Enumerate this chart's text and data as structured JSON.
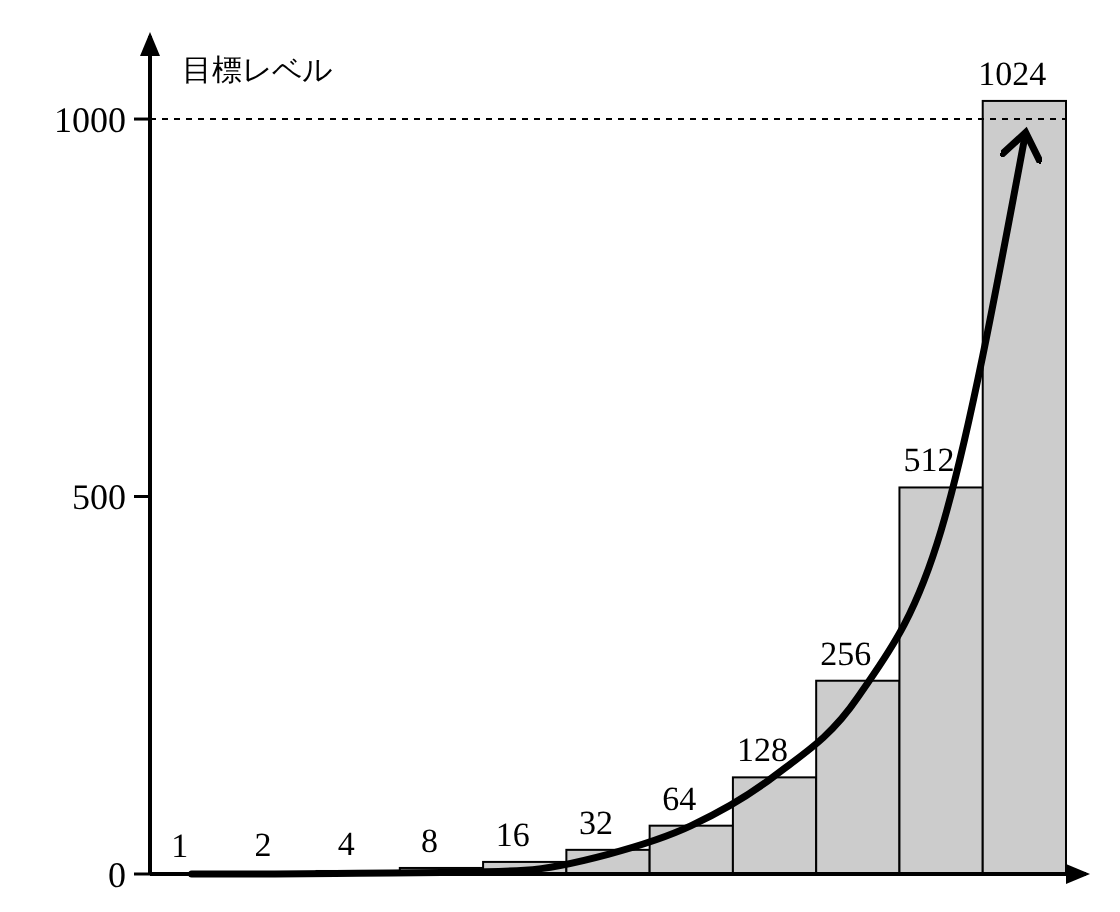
{
  "chart_data": {
    "type": "bar",
    "ylabel": "目標レベル",
    "categories": [
      null,
      null,
      null,
      null,
      null,
      null,
      null,
      null,
      null,
      null,
      null
    ],
    "series": [
      {
        "color": "#cccccc",
        "values": [
          1,
          2,
          4,
          8,
          16,
          32,
          64,
          128,
          256,
          512,
          1024
        ],
        "value_labels": [
          "1",
          "2",
          "4",
          "8",
          "16",
          "32",
          "64",
          "128",
          "256",
          "512",
          "1024"
        ]
      },
      {
        "type": "line",
        "color": "#000000",
        "values": [
          0,
          0,
          1,
          2,
          5,
          26,
          64,
          130,
          234,
          455,
          973
        ]
      }
    ],
    "ylim": [
      0,
      1110
    ],
    "yticks": [
      0,
      500,
      1000
    ],
    "tick_labels": "y",
    "ref_lines": [
      {
        "axis": "y",
        "value": 1000,
        "line_style": "dashed",
        "color": "#000000"
      }
    ],
    "grid": false
  }
}
